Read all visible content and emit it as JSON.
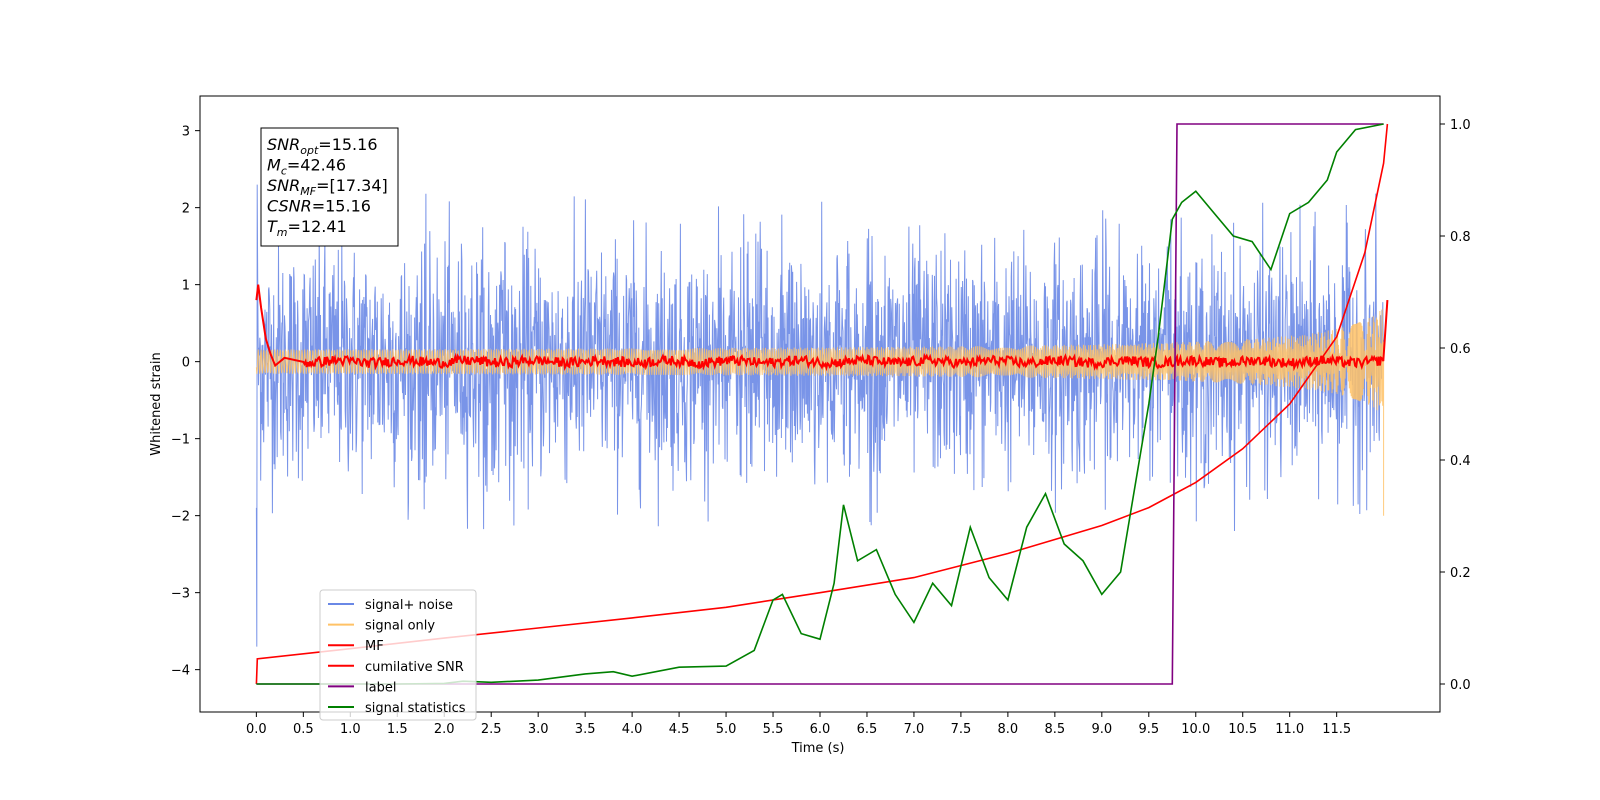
{
  "chart_data": {
    "type": "line",
    "xlabel": "Time (s)",
    "ylabel": "Whitened strain",
    "xlim": [
      -0.6,
      12.6
    ],
    "ylim": [
      -4.55,
      3.45
    ],
    "ylim_right": [
      -0.05,
      1.05
    ],
    "x_ticks": [
      "0.0",
      "0.5",
      "1.0",
      "1.5",
      "2.0",
      "2.5",
      "3.0",
      "3.5",
      "4.0",
      "4.5",
      "5.0",
      "5.5",
      "6.0",
      "6.5",
      "7.0",
      "7.5",
      "8.0",
      "8.5",
      "9.0",
      "9.5",
      "10.0",
      "10.5",
      "11.0",
      "11.5"
    ],
    "y_ticks": [
      "3",
      "2",
      "1",
      "0",
      "−1",
      "−2",
      "−3",
      "−4"
    ],
    "y_ticks_right": [
      "1.0",
      "0.8",
      "0.6",
      "0.4",
      "0.2",
      "0.0"
    ],
    "info_box": [
      {
        "main": "SNR",
        "sub": "opt",
        "rest": "=15.16"
      },
      {
        "main": "M",
        "sub": "c",
        "rest": "=42.46"
      },
      {
        "main": "SNR",
        "sub": "MF",
        "rest": "=[17.34]"
      },
      {
        "main": "CSNR",
        "sub": "",
        "rest": "=15.16"
      },
      {
        "main": "T",
        "sub": "m",
        "rest": "=12.41"
      }
    ],
    "legend_position": "lower-left",
    "series": [
      {
        "name": "signal+ noise",
        "color": "#6a88e6",
        "axis": "left",
        "description": "noise band approx within [-2.2, 2.2]"
      },
      {
        "name": "signal only",
        "color": "#ffc266",
        "axis": "left",
        "chirp_end_amplitude": 0.7,
        "x_end": 12.0
      },
      {
        "name": "MF",
        "color": "#ff0000",
        "axis": "left",
        "points": [
          [
            0.0,
            0.8
          ],
          [
            0.02,
            1.0
          ],
          [
            0.05,
            0.7
          ],
          [
            0.1,
            0.3
          ],
          [
            0.15,
            0.1
          ],
          [
            0.2,
            -0.05
          ],
          [
            0.3,
            0.05
          ],
          [
            0.5,
            0.0
          ],
          [
            1.0,
            0.0
          ],
          [
            12.0,
            0.0
          ],
          [
            12.04,
            0.8
          ]
        ]
      },
      {
        "name": "cumilative SNR",
        "color": "#ff0000",
        "axis": "right",
        "points": [
          [
            0.0,
            0.0
          ],
          [
            0.01,
            0.045
          ],
          [
            1.0,
            0.063
          ],
          [
            2.0,
            0.082
          ],
          [
            3.0,
            0.1
          ],
          [
            4.0,
            0.118
          ],
          [
            5.0,
            0.137
          ],
          [
            6.0,
            0.163
          ],
          [
            7.0,
            0.19
          ],
          [
            8.0,
            0.233
          ],
          [
            9.0,
            0.283
          ],
          [
            9.5,
            0.315
          ],
          [
            10.0,
            0.36
          ],
          [
            10.5,
            0.42
          ],
          [
            11.0,
            0.5
          ],
          [
            11.5,
            0.62
          ],
          [
            11.8,
            0.77
          ],
          [
            12.0,
            0.93
          ],
          [
            12.04,
            1.0
          ]
        ]
      },
      {
        "name": "label",
        "color": "#800080",
        "axis": "right",
        "points": [
          [
            0.0,
            0.0
          ],
          [
            9.75,
            0.0
          ],
          [
            9.8,
            1.0
          ],
          [
            12.0,
            1.0
          ]
        ]
      },
      {
        "name": "signal statistics",
        "color": "#008000",
        "axis": "right",
        "points": [
          [
            0.0,
            0.0
          ],
          [
            0.5,
            0.0
          ],
          [
            1.0,
            0.0
          ],
          [
            1.5,
            0.0
          ],
          [
            2.0,
            0.001
          ],
          [
            2.2,
            0.005
          ],
          [
            2.5,
            0.003
          ],
          [
            3.0,
            0.007
          ],
          [
            3.5,
            0.018
          ],
          [
            3.8,
            0.022
          ],
          [
            4.0,
            0.014
          ],
          [
            4.5,
            0.03
          ],
          [
            5.0,
            0.032
          ],
          [
            5.3,
            0.06
          ],
          [
            5.5,
            0.15
          ],
          [
            5.6,
            0.16
          ],
          [
            5.8,
            0.09
          ],
          [
            6.0,
            0.08
          ],
          [
            6.15,
            0.18
          ],
          [
            6.25,
            0.32
          ],
          [
            6.4,
            0.22
          ],
          [
            6.6,
            0.24
          ],
          [
            6.8,
            0.16
          ],
          [
            7.0,
            0.11
          ],
          [
            7.2,
            0.18
          ],
          [
            7.4,
            0.14
          ],
          [
            7.6,
            0.28
          ],
          [
            7.8,
            0.19
          ],
          [
            8.0,
            0.15
          ],
          [
            8.2,
            0.28
          ],
          [
            8.4,
            0.34
          ],
          [
            8.6,
            0.25
          ],
          [
            8.8,
            0.22
          ],
          [
            9.0,
            0.16
          ],
          [
            9.2,
            0.2
          ],
          [
            9.3,
            0.3
          ],
          [
            9.5,
            0.5
          ],
          [
            9.6,
            0.62
          ],
          [
            9.75,
            0.83
          ],
          [
            9.85,
            0.86
          ],
          [
            10.0,
            0.88
          ],
          [
            10.2,
            0.84
          ],
          [
            10.4,
            0.8
          ],
          [
            10.6,
            0.79
          ],
          [
            10.8,
            0.74
          ],
          [
            11.0,
            0.84
          ],
          [
            11.2,
            0.86
          ],
          [
            11.4,
            0.9
          ],
          [
            11.5,
            0.95
          ],
          [
            11.7,
            0.99
          ],
          [
            12.0,
            1.0
          ]
        ]
      }
    ]
  }
}
